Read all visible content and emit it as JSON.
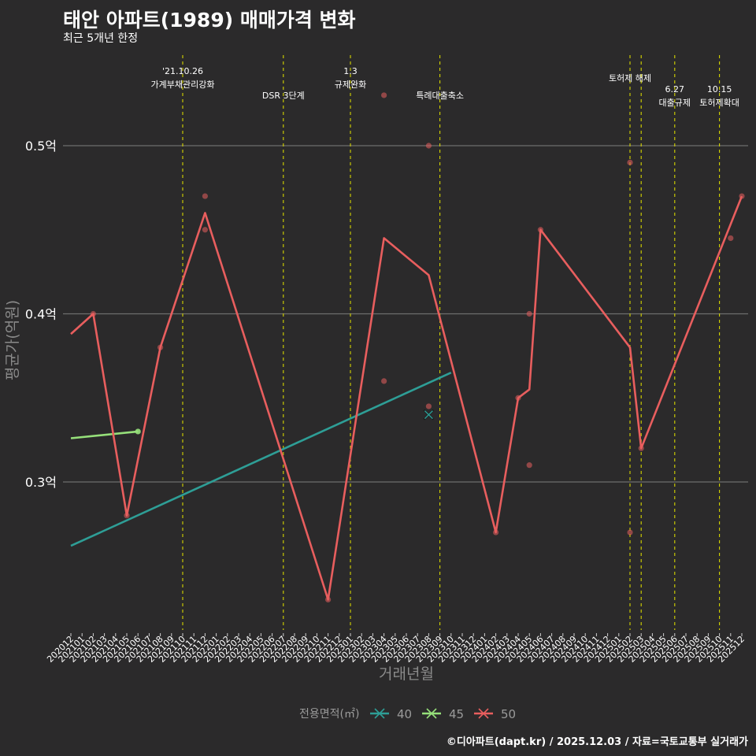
{
  "title": "태안 아파트(1989) 매매가격 변화",
  "subtitle": "최근 5개년 한정",
  "footer": "©디아파트(dapt.kr) / 2025.12.03 / 자료=국토교통부 실거래가",
  "chart_data": {
    "type": "line",
    "xlabel": "거래년월",
    "ylabel": "평균가(억원)",
    "ylim": [
      0.2,
      0.55
    ],
    "yticks": [
      {
        "value": 0.3,
        "label": "0.3억"
      },
      {
        "value": 0.4,
        "label": "0.4억"
      },
      {
        "value": 0.5,
        "label": "0.5억"
      }
    ],
    "categories": [
      "202012",
      "202101",
      "202102",
      "202103",
      "202104",
      "202105",
      "202106",
      "202107",
      "202108",
      "202109",
      "202110",
      "202111",
      "202112",
      "202201",
      "202202",
      "202203",
      "202204",
      "202205",
      "202206",
      "202207",
      "202208",
      "202209",
      "202210",
      "202211",
      "202212",
      "202301",
      "202302",
      "202303",
      "202304",
      "202305",
      "202306",
      "202307",
      "202308",
      "202309",
      "202310",
      "202311",
      "202312",
      "202401",
      "202402",
      "202403",
      "202404",
      "202405",
      "202406",
      "202407",
      "202408",
      "202409",
      "202410",
      "202411",
      "202412",
      "202501",
      "202502",
      "202503",
      "202504",
      "202505",
      "202506",
      "202507",
      "202508",
      "202509",
      "202510",
      "202511",
      "202512"
    ],
    "series": [
      {
        "name": "40",
        "color": "#2e9e96",
        "marker": "x",
        "line": [
          [
            "202012",
            0.262
          ],
          [
            "202310",
            0.365
          ]
        ],
        "points": [
          [
            "202308",
            0.34
          ]
        ]
      },
      {
        "name": "45",
        "color": "#96e07a",
        "marker": "x",
        "line": [
          [
            "202012",
            0.326
          ],
          [
            "202106",
            0.33
          ]
        ],
        "points": [
          [
            "202106",
            0.33
          ]
        ]
      },
      {
        "name": "50",
        "color": "#e85e5e",
        "marker": "x",
        "line": [
          [
            "202012",
            0.388
          ],
          [
            "202102",
            0.4
          ],
          [
            "202105",
            0.28
          ],
          [
            "202108",
            0.38
          ],
          [
            "202112",
            0.46
          ],
          [
            "202211",
            0.23
          ],
          [
            "202304",
            0.445
          ],
          [
            "202308",
            0.423
          ],
          [
            "202402",
            0.27
          ],
          [
            "202404",
            0.35
          ],
          [
            "202405",
            0.355
          ],
          [
            "202406",
            0.45
          ],
          [
            "202502",
            0.38
          ],
          [
            "202503",
            0.32
          ],
          [
            "202512",
            0.47
          ]
        ],
        "points": [
          [
            "202102",
            0.4
          ],
          [
            "202105",
            0.28
          ],
          [
            "202108",
            0.38
          ],
          [
            "202112",
            0.47
          ],
          [
            "202112",
            0.45
          ],
          [
            "202211",
            0.23
          ],
          [
            "202304",
            0.53
          ],
          [
            "202304",
            0.36
          ],
          [
            "202308",
            0.5
          ],
          [
            "202308",
            0.345
          ],
          [
            "202402",
            0.27
          ],
          [
            "202404",
            0.35
          ],
          [
            "202405",
            0.4
          ],
          [
            "202405",
            0.31
          ],
          [
            "202406",
            0.45
          ],
          [
            "202502",
            0.49
          ],
          [
            "202502",
            0.27
          ],
          [
            "202503",
            0.32
          ],
          [
            "202511",
            0.445
          ],
          [
            "202512",
            0.47
          ]
        ]
      }
    ],
    "events": [
      {
        "month": "202110",
        "lines": [
          "'21.10.26",
          "가계부채관리강화"
        ],
        "row": 0
      },
      {
        "month": "202207",
        "lines": [
          "DSR 3단계"
        ],
        "row": 2
      },
      {
        "month": "202301",
        "lines": [
          "1.3",
          "규제완화"
        ],
        "row": 0
      },
      {
        "month": "202309",
        "lines": [
          "특례대출축소"
        ],
        "row": 2
      },
      {
        "month": "202502",
        "lines": [
          "토허제 해제"
        ],
        "row": 1
      },
      {
        "month": "202503",
        "lines": [],
        "row": 1
      },
      {
        "month": "202506",
        "lines": [
          "6.27",
          "대출규제"
        ],
        "row": 1
      },
      {
        "month": "202510",
        "lines": [
          "10.15",
          "토허제확대"
        ],
        "row": 1
      }
    ],
    "legend": {
      "title": "전용면적(㎡)",
      "position": "bottom",
      "items": [
        "40",
        "45",
        "50"
      ]
    }
  }
}
